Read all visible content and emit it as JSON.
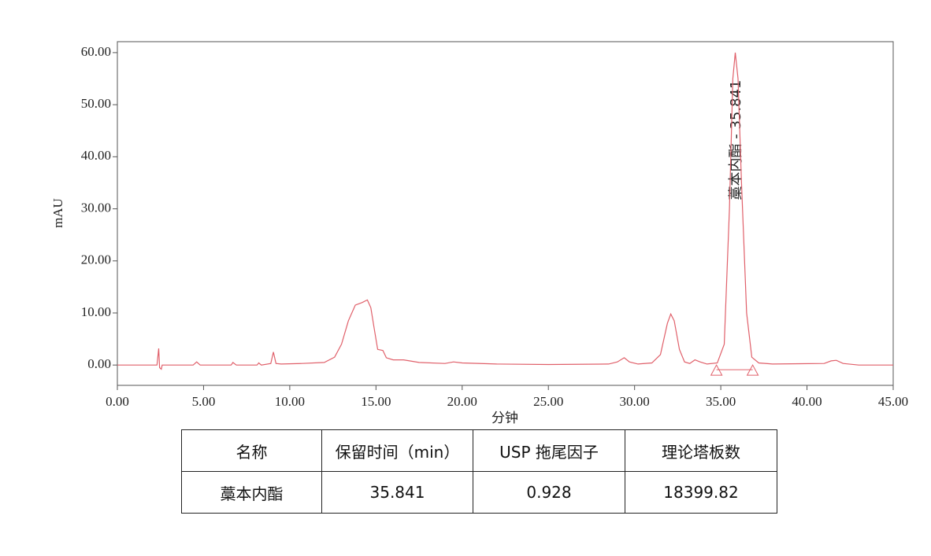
{
  "chart_data": {
    "type": "line",
    "x_label": "分钟",
    "y_label": "mAU",
    "annotation": "藁本内酯 - 35.841",
    "color": "#e0606a",
    "xlim": [
      0,
      45
    ],
    "ylim": [
      -3.9,
      62.1
    ],
    "xticks": [
      {
        "value": 0,
        "label": "0.00"
      },
      {
        "value": 5,
        "label": "5.00"
      },
      {
        "value": 10,
        "label": "10.00"
      },
      {
        "value": 15,
        "label": "15.00"
      },
      {
        "value": 20,
        "label": "20.00"
      },
      {
        "value": 25,
        "label": "25.00"
      },
      {
        "value": 30,
        "label": "30.00"
      },
      {
        "value": 35,
        "label": "35.00"
      },
      {
        "value": 40,
        "label": "40.00"
      },
      {
        "value": 45,
        "label": "45.00"
      }
    ],
    "yticks": [
      {
        "value": 0,
        "label": "0.00"
      },
      {
        "value": 10,
        "label": "10.00"
      },
      {
        "value": 20,
        "label": "20.00"
      },
      {
        "value": 30,
        "label": "30.00"
      },
      {
        "value": 40,
        "label": "40.00"
      },
      {
        "value": 50,
        "label": "50.00"
      },
      {
        "value": 60,
        "label": "60.00"
      }
    ],
    "x": [
      0,
      2.3,
      2.4,
      2.45,
      2.55,
      2.6,
      4.4,
      4.6,
      4.8,
      6.6,
      6.7,
      6.9,
      8.1,
      8.2,
      8.35,
      8.9,
      9.05,
      9.2,
      9.5,
      10.7,
      12.0,
      12.6,
      13.0,
      13.4,
      13.8,
      14.2,
      14.5,
      14.7,
      14.9,
      15.1,
      15.4,
      15.6,
      16.0,
      16.6,
      17.5,
      19.0,
      19.5,
      20.0,
      22,
      25,
      28.5,
      29.0,
      29.4,
      29.7,
      30.2,
      31.0,
      31.5,
      31.9,
      32.1,
      32.3,
      32.6,
      32.9,
      33.2,
      33.5,
      33.8,
      34.2,
      34.8,
      35.2,
      35.5,
      35.7,
      35.841,
      36.0,
      36.2,
      36.5,
      36.8,
      37.2,
      38,
      41,
      41.4,
      41.7,
      42.1,
      43,
      45
    ],
    "values": [
      0,
      0,
      3.2,
      -0.5,
      -0.8,
      0,
      0,
      0.6,
      0,
      0,
      0.5,
      0,
      0,
      0.4,
      0,
      0.3,
      2.5,
      0.3,
      0.2,
      0.3,
      0.5,
      1.5,
      4,
      8.5,
      11.5,
      12,
      12.5,
      11,
      7,
      3,
      2.8,
      1.4,
      1.0,
      1.0,
      0.5,
      0.3,
      0.6,
      0.4,
      0.2,
      0.1,
      0.2,
      0.6,
      1.4,
      0.6,
      0.2,
      0.4,
      2,
      8,
      9.8,
      8.5,
      3,
      0.6,
      0.3,
      1.0,
      0.6,
      0.2,
      0.4,
      4,
      30,
      55,
      60,
      55,
      35,
      10,
      1.5,
      0.4,
      0.2,
      0.3,
      0.8,
      0.9,
      0.3,
      0,
      0
    ],
    "markers_x": [
      34.75,
      36.85
    ],
    "markers_y": [
      -0.9,
      -0.9
    ]
  },
  "table": {
    "header": [
      "名称",
      "保留时间（min）",
      "USP 拖尾因子",
      "理论塔板数"
    ],
    "rows": [
      [
        "藁本内酯",
        "35.841",
        "0.928",
        "18399.82"
      ]
    ]
  }
}
